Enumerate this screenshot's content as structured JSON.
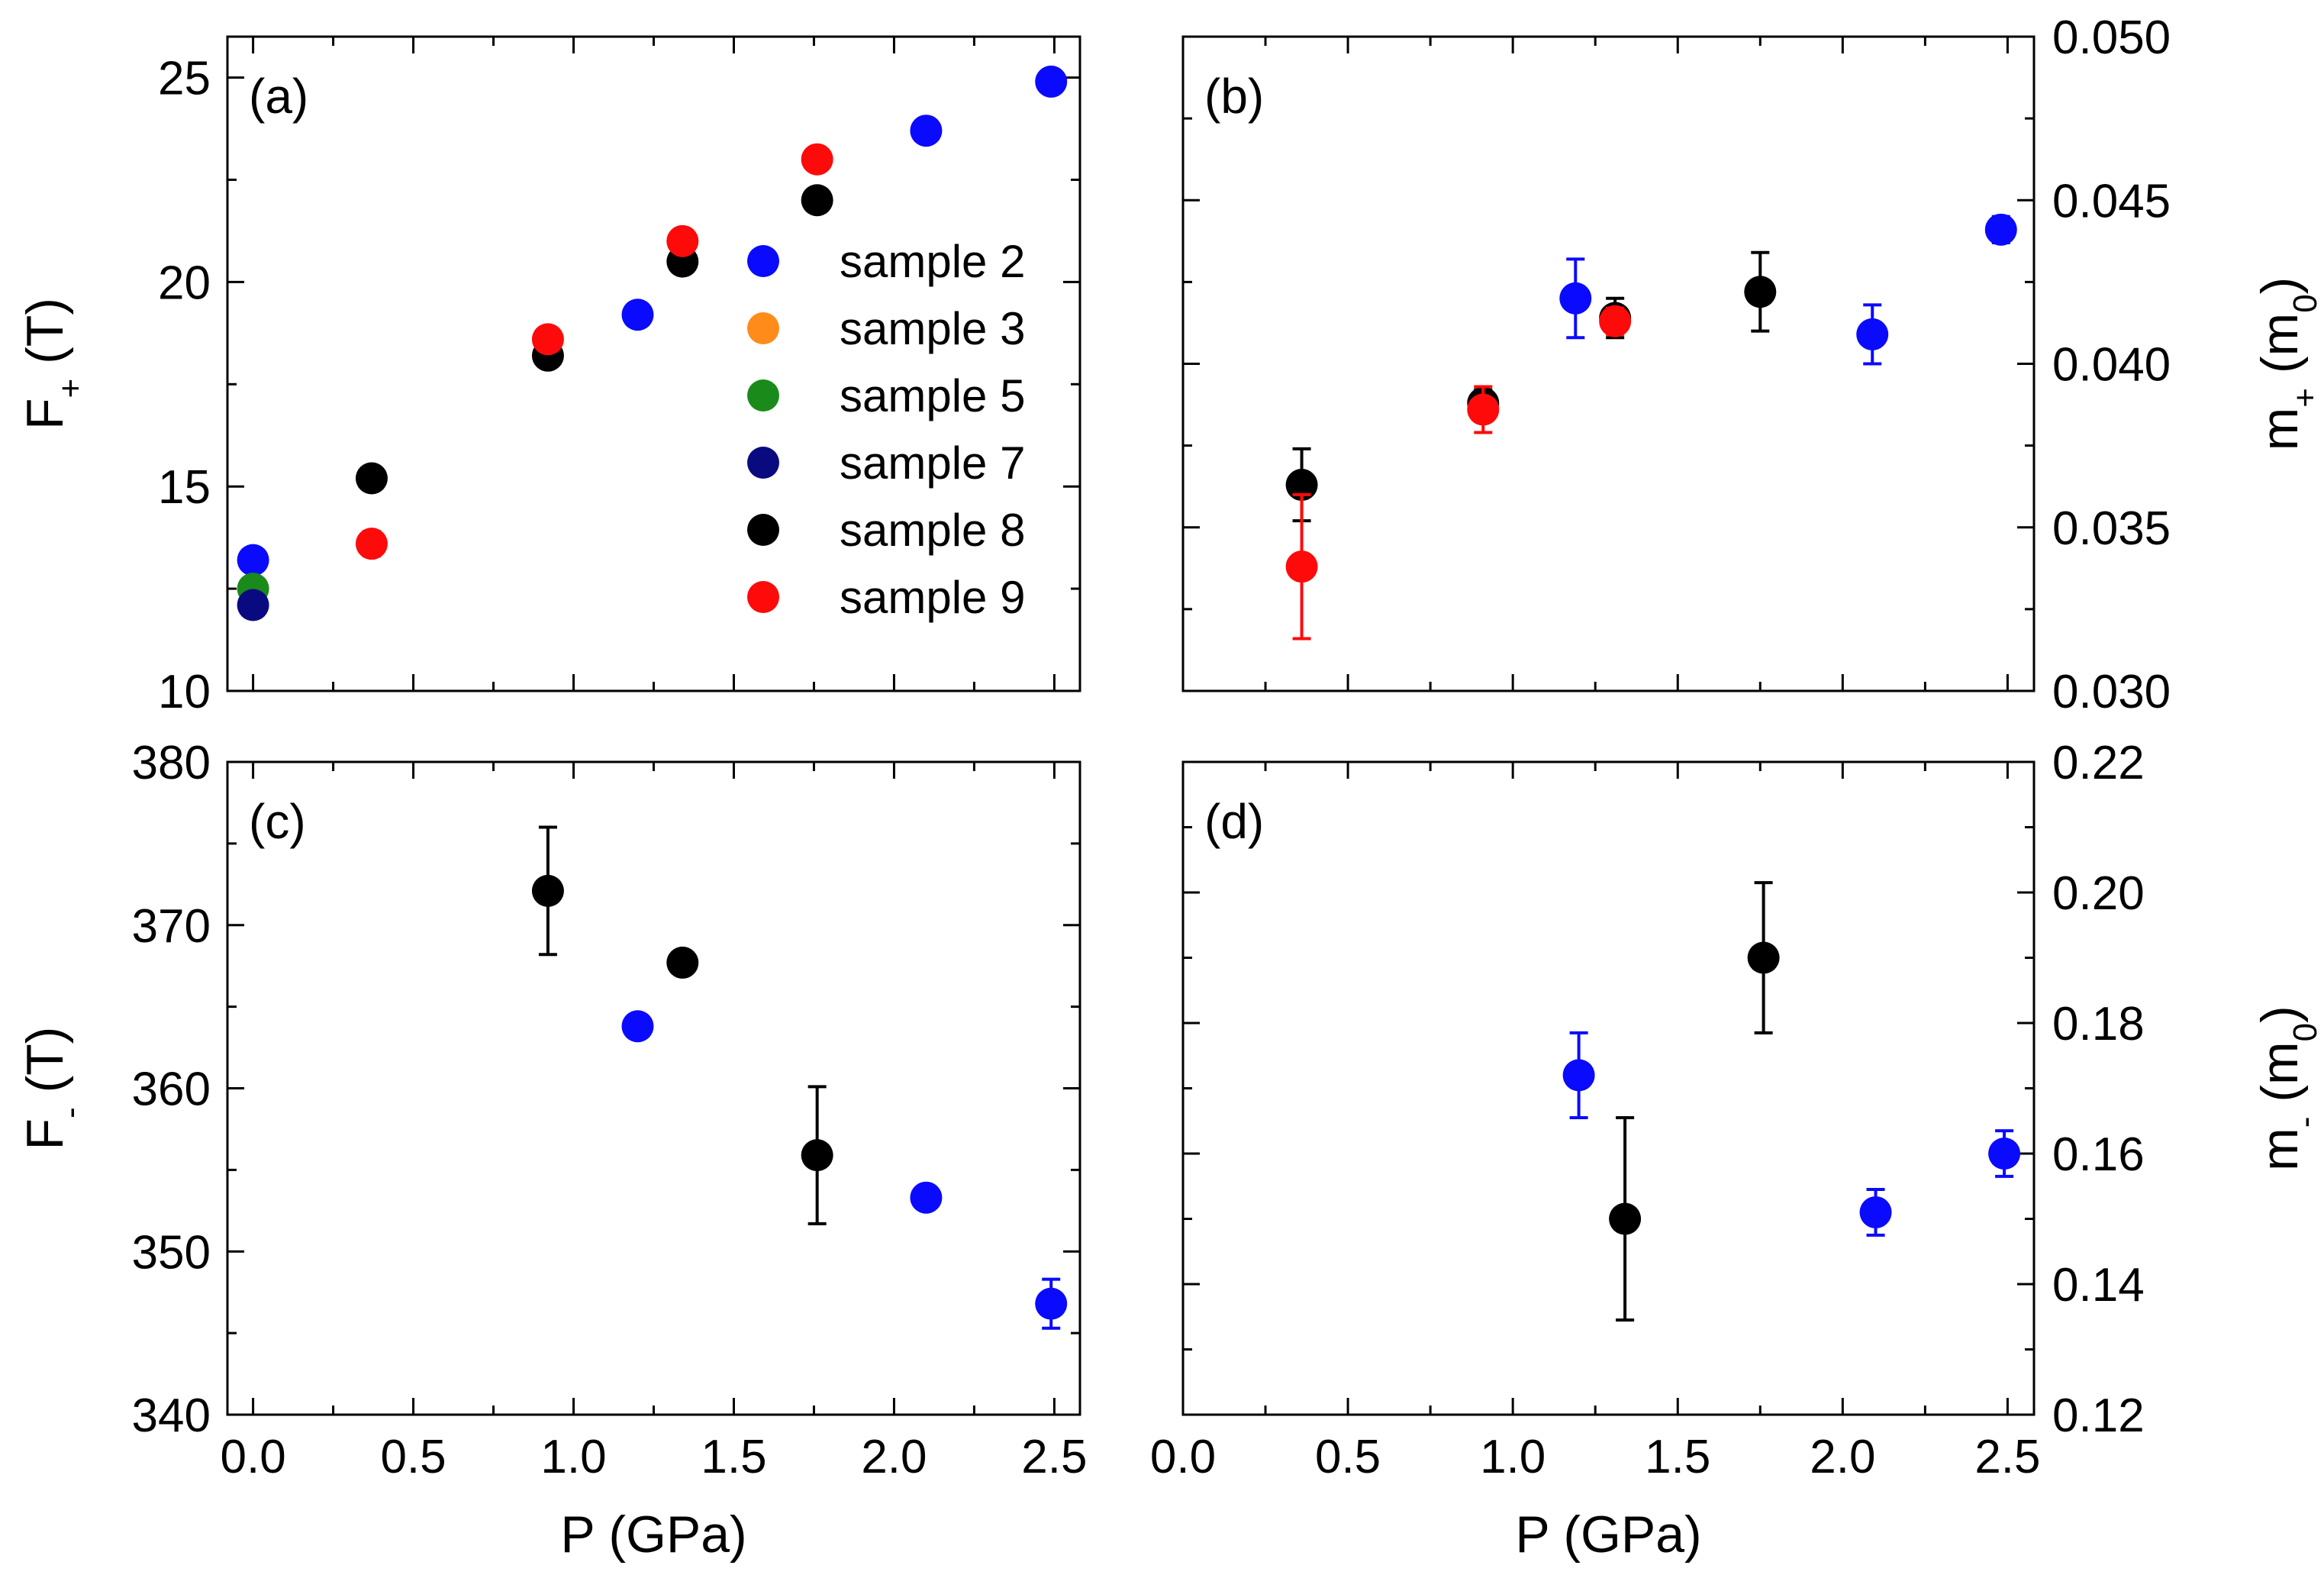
{
  "colors": {
    "sample 2": "#0a0aff",
    "sample 3": "#ff8c1a",
    "sample 5": "#1a8a1a",
    "sample 7": "#0a0a80",
    "sample 8": "#000000",
    "sample 9": "#ff0a0a"
  },
  "shared_x": {
    "label": "P (GPa)",
    "ticks": [
      "0.0",
      "0.5",
      "1.0",
      "1.5",
      "2.0",
      "2.5"
    ]
  },
  "chart_data": [
    {
      "id": "a",
      "type": "scatter",
      "panel_label": "(a)",
      "ylabel": "F",
      "ylabel_sub": "+",
      "ylabel_suffix": " (T)",
      "xlim": [
        -0.08,
        2.58
      ],
      "ylim": [
        10,
        26
      ],
      "yticks": [
        10,
        15,
        20,
        25
      ],
      "ytick_labels": [
        "10",
        "15",
        "20",
        "25"
      ],
      "y_side": "left",
      "series": [
        {
          "name": "sample 2",
          "points": [
            [
              0.0,
              13.2,
              0
            ],
            [
              1.2,
              19.2,
              0
            ],
            [
              2.1,
              23.7,
              0
            ],
            [
              2.49,
              24.9,
              0
            ]
          ]
        },
        {
          "name": "sample 3",
          "points": []
        },
        {
          "name": "sample 5",
          "points": [
            [
              0.0,
              12.5,
              0
            ]
          ]
        },
        {
          "name": "sample 7",
          "points": [
            [
              0.0,
              12.1,
              0
            ]
          ]
        },
        {
          "name": "sample 8",
          "points": [
            [
              0.37,
              15.2,
              0
            ],
            [
              0.92,
              18.2,
              0
            ],
            [
              1.34,
              20.5,
              0
            ],
            [
              1.76,
              22.0,
              0.2
            ]
          ]
        },
        {
          "name": "sample 9",
          "points": [
            [
              0.37,
              13.6,
              0.3
            ],
            [
              0.92,
              18.6,
              0
            ],
            [
              1.34,
              21.0,
              0
            ],
            [
              1.76,
              23.0,
              0
            ]
          ]
        }
      ],
      "legend": {
        "placement": "right",
        "entries": [
          "sample 2",
          "sample 3",
          "sample 5",
          "sample 7",
          "sample 8",
          "sample 9"
        ]
      }
    },
    {
      "id": "b",
      "type": "scatter",
      "panel_label": "(b)",
      "ylabel": "m",
      "ylabel_sub": "+",
      "ylabel_suffix": " (m",
      "ylabel_sub2": "0",
      "ylabel_end": ")",
      "xlim": [
        0.0,
        2.58
      ],
      "ylim": [
        0.03,
        0.05
      ],
      "yticks": [
        0.03,
        0.035,
        0.04,
        0.045,
        0.05
      ],
      "ytick_labels": [
        "0.030",
        "0.035",
        "0.040",
        "0.045",
        "0.050"
      ],
      "y_side": "right",
      "series": [
        {
          "name": "sample 2",
          "points": [
            [
              1.19,
              0.042,
              0.0012
            ],
            [
              2.09,
              0.0409,
              0.0009
            ],
            [
              2.48,
              0.0441,
              0.0004
            ]
          ]
        },
        {
          "name": "sample 8",
          "points": [
            [
              0.36,
              0.0363,
              0.0011
            ],
            [
              0.91,
              0.0388,
              0.0004
            ],
            [
              1.31,
              0.0414,
              0.0006
            ],
            [
              1.75,
              0.0422,
              0.0012
            ]
          ]
        },
        {
          "name": "sample 9",
          "points": [
            [
              0.36,
              0.0338,
              0.0022
            ],
            [
              0.91,
              0.0386,
              0.0007
            ],
            [
              1.31,
              0.0413,
              0.0004
            ]
          ]
        }
      ]
    },
    {
      "id": "c",
      "type": "scatter",
      "panel_label": "(c)",
      "ylabel": "F",
      "ylabel_sub": "-",
      "ylabel_suffix": " (T)",
      "xlim": [
        -0.08,
        2.58
      ],
      "ylim": [
        340,
        380
      ],
      "yticks": [
        340,
        350,
        360,
        370,
        380
      ],
      "ytick_labels": [
        "340",
        "350",
        "360",
        "370",
        "380"
      ],
      "y_side": "left",
      "series": [
        {
          "name": "sample 2",
          "points": [
            [
              1.2,
              363.8,
              0
            ],
            [
              2.1,
              353.3,
              0
            ],
            [
              2.49,
              346.8,
              1.5
            ]
          ]
        },
        {
          "name": "sample 8",
          "points": [
            [
              0.92,
              372.1,
              3.9
            ],
            [
              1.34,
              367.7,
              0
            ],
            [
              1.76,
              355.9,
              4.2
            ]
          ]
        }
      ]
    },
    {
      "id": "d",
      "type": "scatter",
      "panel_label": "(d)",
      "ylabel": "m",
      "ylabel_sub": "-",
      "ylabel_suffix": " (m",
      "ylabel_sub2": "0",
      "ylabel_end": ")",
      "xlim": [
        0.0,
        2.58
      ],
      "ylim": [
        0.12,
        0.22
      ],
      "yticks": [
        0.12,
        0.14,
        0.16,
        0.18,
        0.2,
        0.22
      ],
      "ytick_labels": [
        "0.12",
        "0.14",
        "0.16",
        "0.18",
        "0.20",
        "0.22"
      ],
      "y_side": "right",
      "series": [
        {
          "name": "sample 2",
          "points": [
            [
              1.2,
              0.172,
              0.0065
            ],
            [
              2.1,
              0.151,
              0.0035
            ],
            [
              2.49,
              0.16,
              0.0035
            ]
          ]
        },
        {
          "name": "sample 8",
          "points": [
            [
              1.34,
              0.15,
              0.0155
            ],
            [
              1.76,
              0.19,
              0.0115
            ]
          ]
        }
      ]
    }
  ]
}
